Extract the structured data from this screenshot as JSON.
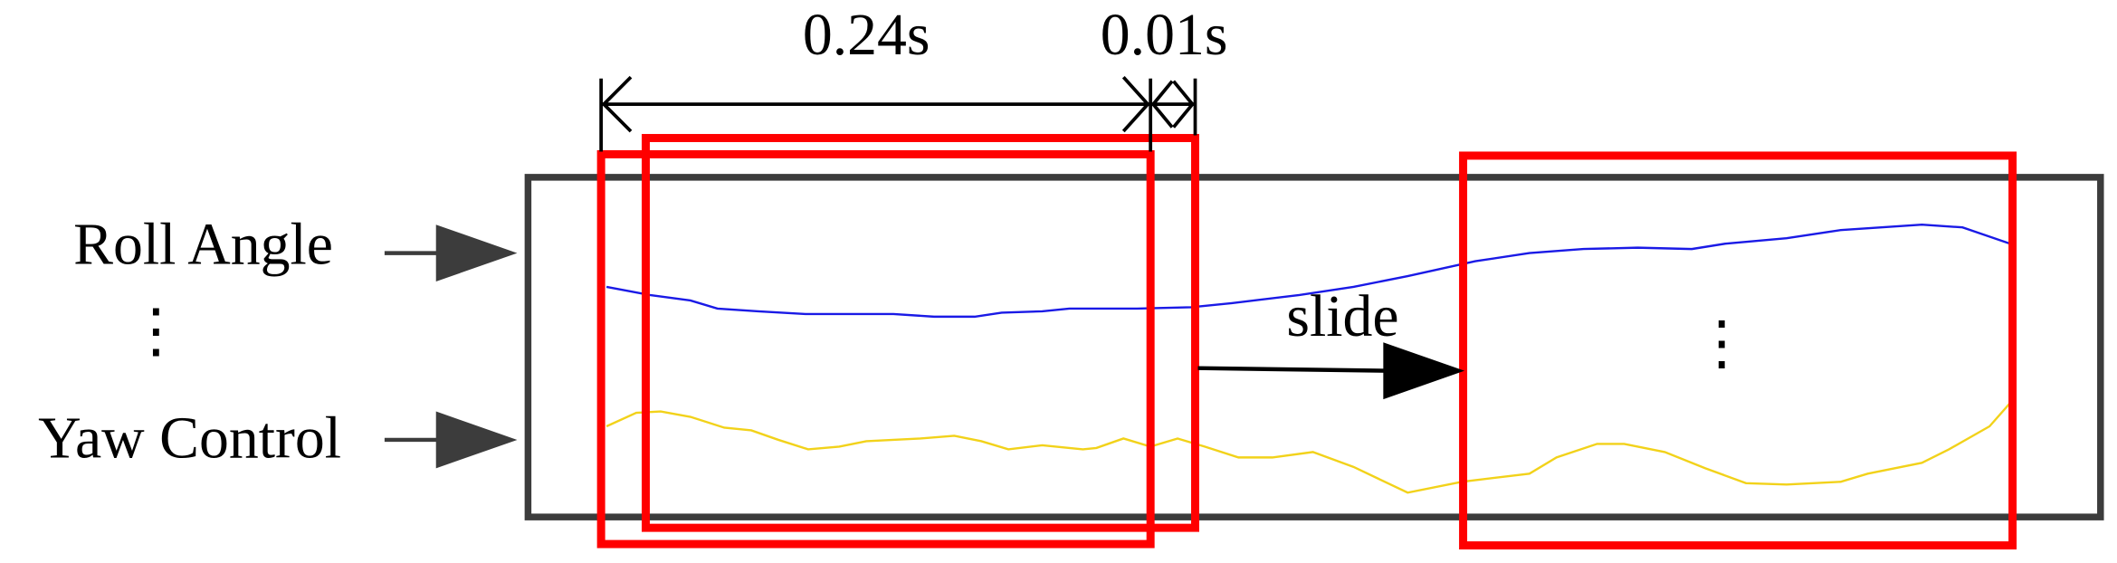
{
  "labels": {
    "window_duration": "0.24s",
    "step_duration": "0.01s",
    "input_top": "Roll Angle",
    "ellipsis_left": "⋮",
    "input_bottom": "Yaw Control",
    "action": "slide",
    "ellipsis_right": "⋮"
  }
}
